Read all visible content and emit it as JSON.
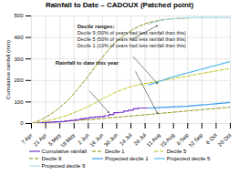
{
  "chart_data": {
    "type": "line",
    "title": "Rainfall to Date – CADOUX (Patched point)",
    "ylabel": "Cumulative rainfall (mm)",
    "x": [
      0,
      1,
      2,
      3,
      4,
      5,
      6,
      7,
      8,
      9,
      10,
      11,
      12,
      13,
      14,
      15,
      16,
      17,
      18,
      19,
      20,
      21,
      22,
      23,
      24,
      25,
      26,
      27,
      28,
      29,
      30,
      31,
      32,
      33,
      34,
      35,
      36,
      37,
      38,
      39,
      40,
      41
    ],
    "xlim": [
      0,
      41
    ],
    "xticks": [
      {
        "value": 0,
        "label": "7 Apr"
      },
      {
        "value": 2.928571428571428,
        "label": "21 Apr"
      },
      {
        "value": 5.857142857142857,
        "label": "5 May"
      },
      {
        "value": 8.785714285714286,
        "label": "19 May"
      },
      {
        "value": 11.714285714285714,
        "label": "2 Jun"
      },
      {
        "value": 14.642857142857142,
        "label": "16 Jun"
      },
      {
        "value": 17.571428571428573,
        "label": "30 Jun"
      },
      {
        "value": 20.5,
        "label": "14 Jul"
      },
      {
        "value": 23.428571428571427,
        "label": "28 Jul"
      },
      {
        "value": 26.357142857142858,
        "label": "11 Aug"
      },
      {
        "value": 29.285714285714285,
        "label": "25 Aug"
      },
      {
        "value": 32.214285714285715,
        "label": "8 Sep"
      },
      {
        "value": 35.142857142857146,
        "label": "22 Sep"
      },
      {
        "value": 38.07142857142857,
        "label": "6 Oct"
      },
      {
        "value": 41,
        "label": "20 Oct"
      }
    ],
    "ylim": [
      0,
      500
    ],
    "yticks": [
      0,
      100,
      200,
      300,
      400,
      500
    ],
    "grid": true,
    "legend": "bottom",
    "series": [
      {
        "name": "Cumulative rainfall",
        "color": "#7733cc",
        "type": "step",
        "line_style": "solid",
        "values": [
          0,
          2,
          4,
          6,
          7,
          8,
          9,
          12,
          14,
          18,
          22,
          25,
          28,
          30,
          32,
          36,
          42,
          50,
          52,
          58,
          62,
          68,
          72,
          72,
          72,
          null,
          null,
          null,
          null,
          null,
          null,
          null,
          null,
          null,
          null,
          null,
          null,
          null,
          null,
          null,
          null,
          null
        ]
      },
      {
        "name": "Decile 1",
        "color": "#888800",
        "type": "line",
        "line_style": "dashed",
        "values": [
          0,
          1,
          2,
          4,
          5,
          7,
          8,
          10,
          12,
          13,
          15,
          17,
          18,
          20,
          22,
          24,
          26,
          28,
          30,
          32,
          34,
          36,
          38,
          40,
          42,
          44,
          46,
          48,
          50,
          52,
          54,
          56,
          58,
          60,
          62,
          64,
          66,
          68,
          70,
          72,
          74,
          76
        ]
      },
      {
        "name": "Decile 5",
        "color": "#bbbb00",
        "type": "line",
        "line_style": "dashed",
        "values": [
          0,
          3,
          7,
          12,
          17,
          22,
          28,
          35,
          43,
          52,
          62,
          72,
          83,
          94,
          106,
          118,
          130,
          142,
          152,
          160,
          168,
          175,
          180,
          184,
          188,
          192,
          196,
          200,
          204,
          208,
          212,
          216,
          220,
          224,
          228,
          232,
          236,
          240,
          244,
          248,
          252,
          256
        ]
      },
      {
        "name": "Decile 9",
        "color": "#888800",
        "type": "line",
        "line_style": "dashed",
        "values": [
          0,
          8,
          18,
          30,
          44,
          60,
          78,
          98,
          120,
          145,
          172,
          200,
          230,
          260,
          290,
          318,
          345,
          370,
          390,
          408,
          424,
          438,
          450,
          460,
          468,
          474,
          478,
          482,
          484,
          486,
          488,
          489,
          490,
          491,
          492,
          492,
          492,
          492,
          492,
          492,
          492,
          492
        ]
      },
      {
        "name": "Projected decile 1",
        "color": "#3399ee",
        "type": "line",
        "line_style": "solid",
        "values": [
          null,
          null,
          null,
          null,
          null,
          null,
          null,
          null,
          null,
          null,
          null,
          null,
          null,
          null,
          null,
          null,
          null,
          null,
          null,
          null,
          null,
          null,
          null,
          null,
          72,
          73,
          74,
          75,
          76,
          77,
          78,
          79,
          80,
          82,
          84,
          86,
          88,
          90,
          92,
          94,
          96,
          98
        ]
      },
      {
        "name": "Projected decile 5",
        "color": "#55bbee",
        "type": "line",
        "line_style": "solid",
        "values": [
          null,
          null,
          null,
          null,
          null,
          null,
          null,
          null,
          null,
          null,
          null,
          null,
          null,
          null,
          null,
          null,
          null,
          null,
          null,
          null,
          null,
          null,
          null,
          null,
          180,
          185,
          192,
          200,
          208,
          216,
          222,
          228,
          234,
          240,
          246,
          252,
          258,
          264,
          270,
          276,
          282,
          288
        ]
      },
      {
        "name": "Projected decile 9",
        "color": "#aaddee",
        "type": "line",
        "line_style": "solid",
        "values": [
          null,
          null,
          null,
          null,
          null,
          null,
          null,
          null,
          null,
          null,
          null,
          null,
          null,
          null,
          null,
          null,
          null,
          null,
          null,
          null,
          null,
          null,
          null,
          null,
          460,
          468,
          475,
          480,
          484,
          487,
          489,
          491,
          492,
          492,
          492,
          492,
          492,
          492,
          492,
          492,
          492,
          492
        ]
      }
    ],
    "annotations": [
      "Decile ranges:",
      "Decile 9 (90% of years had less rainfall than this)",
      "Decile 5 (50% of years had less rainfall than this)",
      "Decile 1 (10% of years had less rainfall than this)",
      "Rainfall to date this year"
    ]
  }
}
